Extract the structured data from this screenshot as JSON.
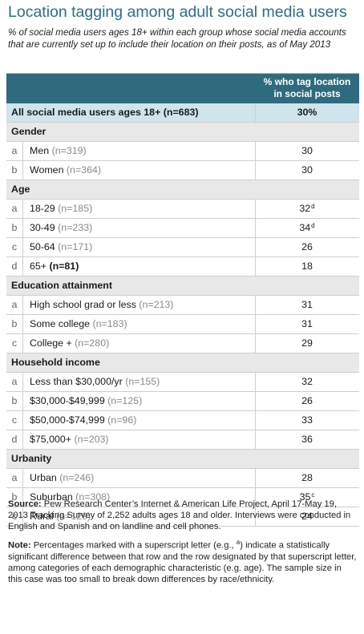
{
  "title": "Location tagging among adult social media users",
  "subtitle": "% of social media users ages 18+ within each group whose social media accounts that are currently set up to include their location on their posts, as of May 2013",
  "column_header_line1": "% who tag location",
  "column_header_line2": "in social posts",
  "total": {
    "label": "All social media users ages 18+ (n=683)",
    "value": "30%"
  },
  "groups": {
    "gender": {
      "label": "Gender",
      "rows": [
        {
          "letter": "a",
          "label": "Men",
          "n": "(n=319)",
          "value": "30",
          "sup": ""
        },
        {
          "letter": "b",
          "label": "Women",
          "n": "(n=364)",
          "value": "30",
          "sup": ""
        }
      ]
    },
    "age": {
      "label": "Age",
      "rows": [
        {
          "letter": "a",
          "label": "18-29",
          "n": "(n=185)",
          "value": "32",
          "sup": "d"
        },
        {
          "letter": "b",
          "label": "30-49",
          "n": "(n=233)",
          "value": "34",
          "sup": "d"
        },
        {
          "letter": "c",
          "label": "50-64",
          "n": "(n=171)",
          "value": "26",
          "sup": ""
        },
        {
          "letter": "d",
          "label": "65+",
          "n": "(n=81)",
          "value": "18",
          "sup": ""
        }
      ]
    },
    "education": {
      "label": "Education attainment",
      "rows": [
        {
          "letter": "a",
          "label": "High school grad or less",
          "n": "(n=213)",
          "value": "31",
          "sup": ""
        },
        {
          "letter": "b",
          "label": "Some college",
          "n": "(n=183)",
          "value": "31",
          "sup": ""
        },
        {
          "letter": "c",
          "label": "College +",
          "n": "(n=280)",
          "value": "29",
          "sup": ""
        }
      ]
    },
    "income": {
      "label": "Household income",
      "rows": [
        {
          "letter": "a",
          "label": "Less than $30,000/yr",
          "n": "(n=155)",
          "value": "32",
          "sup": ""
        },
        {
          "letter": "b",
          "label": "$30,000-$49,999",
          "n": "(n=125)",
          "value": "26",
          "sup": ""
        },
        {
          "letter": "c",
          "label": "$50,000-$74,999",
          "n": "(n=96)",
          "value": "33",
          "sup": ""
        },
        {
          "letter": "d",
          "label": "$75,000+",
          "n": "(n=203)",
          "value": "36",
          "sup": ""
        }
      ]
    },
    "urbanity": {
      "label": "Urbanity",
      "rows": [
        {
          "letter": "a",
          "label": "Urban",
          "n": "(n=246)",
          "value": "28",
          "sup": ""
        },
        {
          "letter": "b",
          "label": "Suburban",
          "n": "(n=308)",
          "value": "35",
          "sup": "c"
        },
        {
          "letter": "c",
          "label": "Rural",
          "n": "(n=129)",
          "value": "24",
          "sup": ""
        }
      ]
    }
  },
  "source_label": "Source:",
  "source_text": "Pew Research Center’s Internet & American Life Project, April 17-May 19, 2013 Tracking Survey of 2,252 adults ages 18 and older. Interviews were conducted in English and Spanish and on landline and cell phones.",
  "note_label": "Note:",
  "note_text_before": "Percentages marked with a superscript letter (e.g., ",
  "note_sup": "a",
  "note_text_after": ") indicate a statistically significant difference between that row and the row designated by that superscript letter, among categories of each demographic characteristic (e.g. age). The sample size in this case was too small to break down differences by race/ethnicity.",
  "colors": {
    "title": "#2b6f86",
    "header_bg": "#2e6b7f",
    "total_bg": "#cfe4ec",
    "group_bg": "#e8e8e8"
  }
}
